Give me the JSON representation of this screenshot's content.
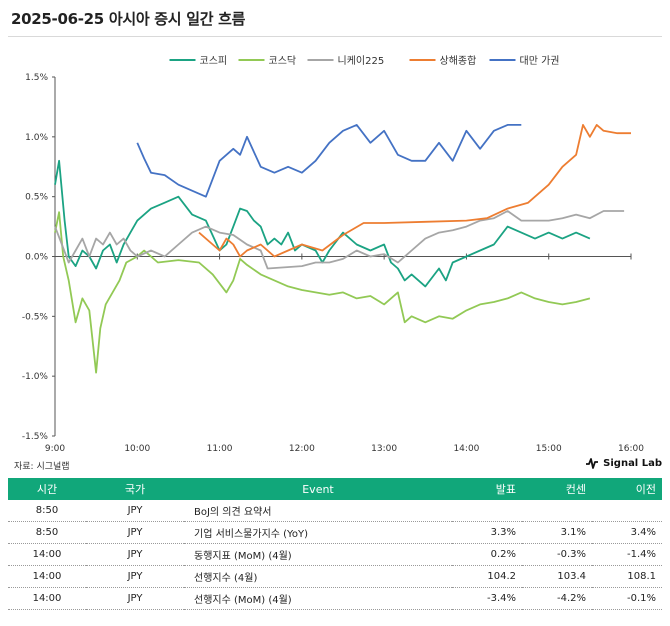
{
  "header": {
    "title": "2025-06-25 아시아 증시 일간 흐름"
  },
  "footer": {
    "source": "자료: 시그널랩",
    "brand": "Signal Lab"
  },
  "colors": {
    "kospi": "#1ba383",
    "kosdaq": "#92c955",
    "nikkei": "#a6a6a6",
    "shanghai": "#ed7d31",
    "taiwan": "#4472c4",
    "table_header": "#11a77a"
  },
  "chart_data": {
    "type": "line",
    "x_ticks": [
      "9:00",
      "10:00",
      "11:00",
      "12:00",
      "13:00",
      "14:00",
      "15:00",
      "16:00"
    ],
    "y_ticks": [
      "1.5%",
      "1.0%",
      "0.5%",
      "0.0%",
      "-0.5%",
      "-1.0%",
      "-1.5%"
    ],
    "ylim": [
      -1.5,
      1.5
    ],
    "xlim": [
      "9:00",
      "16:00"
    ],
    "legend_position": "top",
    "grid": false,
    "series": [
      {
        "name": "코스피",
        "color": "#1ba383",
        "points": [
          [
            "9:00",
            0.6
          ],
          [
            "9:03",
            0.8
          ],
          [
            "9:07",
            0.3
          ],
          [
            "9:10",
            0.0
          ],
          [
            "9:15",
            -0.08
          ],
          [
            "9:20",
            0.05
          ],
          [
            "9:25",
            0.0
          ],
          [
            "9:30",
            -0.1
          ],
          [
            "9:35",
            0.05
          ],
          [
            "9:40",
            0.1
          ],
          [
            "9:45",
            -0.05
          ],
          [
            "9:50",
            0.1
          ],
          [
            "9:55",
            0.2
          ],
          [
            "10:00",
            0.3
          ],
          [
            "10:10",
            0.4
          ],
          [
            "10:20",
            0.45
          ],
          [
            "10:30",
            0.5
          ],
          [
            "10:40",
            0.35
          ],
          [
            "10:50",
            0.3
          ],
          [
            "11:00",
            0.05
          ],
          [
            "11:05",
            0.1
          ],
          [
            "11:10",
            0.25
          ],
          [
            "11:15",
            0.4
          ],
          [
            "11:20",
            0.38
          ],
          [
            "11:25",
            0.3
          ],
          [
            "11:30",
            0.25
          ],
          [
            "11:35",
            0.1
          ],
          [
            "11:40",
            0.15
          ],
          [
            "11:45",
            0.1
          ],
          [
            "11:50",
            0.2
          ],
          [
            "11:55",
            0.05
          ],
          [
            "12:00",
            0.1
          ],
          [
            "12:10",
            0.05
          ],
          [
            "12:15",
            -0.05
          ],
          [
            "12:20",
            0.05
          ],
          [
            "12:30",
            0.2
          ],
          [
            "12:40",
            0.1
          ],
          [
            "12:50",
            0.05
          ],
          [
            "13:00",
            0.1
          ],
          [
            "13:05",
            -0.05
          ],
          [
            "13:10",
            -0.1
          ],
          [
            "13:15",
            -0.2
          ],
          [
            "13:20",
            -0.15
          ],
          [
            "13:30",
            -0.25
          ],
          [
            "13:40",
            -0.1
          ],
          [
            "13:45",
            -0.2
          ],
          [
            "13:50",
            -0.05
          ],
          [
            "14:00",
            0.0
          ],
          [
            "14:10",
            0.05
          ],
          [
            "14:20",
            0.1
          ],
          [
            "14:30",
            0.25
          ],
          [
            "14:40",
            0.2
          ],
          [
            "14:50",
            0.15
          ],
          [
            "15:00",
            0.2
          ],
          [
            "15:10",
            0.15
          ],
          [
            "15:20",
            0.2
          ],
          [
            "15:30",
            0.15
          ]
        ]
      },
      {
        "name": "코스닥",
        "color": "#92c955",
        "points": [
          [
            "9:00",
            0.2
          ],
          [
            "9:03",
            0.37
          ],
          [
            "9:06",
            0.0
          ],
          [
            "9:10",
            -0.2
          ],
          [
            "9:15",
            -0.55
          ],
          [
            "9:20",
            -0.35
          ],
          [
            "9:25",
            -0.45
          ],
          [
            "9:30",
            -0.97
          ],
          [
            "9:33",
            -0.6
          ],
          [
            "9:37",
            -0.4
          ],
          [
            "9:42",
            -0.3
          ],
          [
            "9:47",
            -0.2
          ],
          [
            "9:52",
            -0.05
          ],
          [
            "10:00",
            0.0
          ],
          [
            "10:05",
            0.05
          ],
          [
            "10:15",
            -0.05
          ],
          [
            "10:30",
            -0.03
          ],
          [
            "10:45",
            -0.05
          ],
          [
            "10:55",
            -0.15
          ],
          [
            "11:05",
            -0.3
          ],
          [
            "11:10",
            -0.2
          ],
          [
            "11:15",
            -0.02
          ],
          [
            "11:20",
            -0.07
          ],
          [
            "11:30",
            -0.15
          ],
          [
            "11:40",
            -0.2
          ],
          [
            "11:50",
            -0.25
          ],
          [
            "12:00",
            -0.28
          ],
          [
            "12:10",
            -0.3
          ],
          [
            "12:20",
            -0.32
          ],
          [
            "12:30",
            -0.3
          ],
          [
            "12:40",
            -0.35
          ],
          [
            "12:50",
            -0.33
          ],
          [
            "13:00",
            -0.4
          ],
          [
            "13:10",
            -0.3
          ],
          [
            "13:15",
            -0.55
          ],
          [
            "13:20",
            -0.5
          ],
          [
            "13:30",
            -0.55
          ],
          [
            "13:40",
            -0.5
          ],
          [
            "13:50",
            -0.52
          ],
          [
            "14:00",
            -0.45
          ],
          [
            "14:10",
            -0.4
          ],
          [
            "14:20",
            -0.38
          ],
          [
            "14:30",
            -0.35
          ],
          [
            "14:40",
            -0.3
          ],
          [
            "14:50",
            -0.35
          ],
          [
            "15:00",
            -0.38
          ],
          [
            "15:10",
            -0.4
          ],
          [
            "15:20",
            -0.38
          ],
          [
            "15:30",
            -0.35
          ]
        ]
      },
      {
        "name": "니케이225",
        "color": "#a6a6a6",
        "points": [
          [
            "9:00",
            0.25
          ],
          [
            "9:05",
            0.1
          ],
          [
            "9:10",
            -0.05
          ],
          [
            "9:15",
            0.05
          ],
          [
            "9:20",
            0.15
          ],
          [
            "9:25",
            0.0
          ],
          [
            "9:30",
            0.15
          ],
          [
            "9:35",
            0.1
          ],
          [
            "9:40",
            0.2
          ],
          [
            "9:45",
            0.1
          ],
          [
            "9:50",
            0.15
          ],
          [
            "9:55",
            0.05
          ],
          [
            "10:00",
            0.0
          ],
          [
            "10:10",
            0.05
          ],
          [
            "10:20",
            0.0
          ],
          [
            "10:30",
            0.1
          ],
          [
            "10:40",
            0.2
          ],
          [
            "10:50",
            0.25
          ],
          [
            "11:00",
            0.2
          ],
          [
            "11:10",
            0.18
          ],
          [
            "11:20",
            0.1
          ],
          [
            "11:30",
            0.05
          ],
          [
            "11:35",
            -0.1
          ],
          [
            "12:00",
            -0.08
          ],
          [
            "12:10",
            -0.05
          ],
          [
            "12:20",
            -0.05
          ],
          [
            "12:30",
            -0.02
          ],
          [
            "12:40",
            0.05
          ],
          [
            "12:50",
            0.0
          ],
          [
            "13:00",
            0.02
          ],
          [
            "13:10",
            -0.05
          ],
          [
            "13:20",
            0.05
          ],
          [
            "13:30",
            0.15
          ],
          [
            "13:40",
            0.2
          ],
          [
            "13:50",
            0.22
          ],
          [
            "14:00",
            0.25
          ],
          [
            "14:10",
            0.3
          ],
          [
            "14:20",
            0.32
          ],
          [
            "14:30",
            0.38
          ],
          [
            "14:40",
            0.3
          ],
          [
            "14:50",
            0.3
          ],
          [
            "15:00",
            0.3
          ],
          [
            "15:10",
            0.32
          ],
          [
            "15:20",
            0.35
          ],
          [
            "15:30",
            0.32
          ],
          [
            "15:40",
            0.38
          ],
          [
            "15:55",
            0.38
          ]
        ]
      },
      {
        "name": "상해종합",
        "color": "#ed7d31",
        "points": [
          [
            "10:45",
            0.2
          ],
          [
            "10:55",
            0.1
          ],
          [
            "11:00",
            0.05
          ],
          [
            "11:05",
            0.15
          ],
          [
            "11:10",
            0.1
          ],
          [
            "11:15",
            0.0
          ],
          [
            "11:20",
            0.05
          ],
          [
            "11:30",
            0.1
          ],
          [
            "11:40",
            0.0
          ],
          [
            "11:50",
            0.05
          ],
          [
            "12:00",
            0.1
          ],
          [
            "12:15",
            0.05
          ],
          [
            "12:30",
            0.18
          ],
          [
            "12:45",
            0.28
          ],
          [
            "13:00",
            0.28
          ],
          [
            "13:30",
            0.29
          ],
          [
            "14:00",
            0.3
          ],
          [
            "14:15",
            0.32
          ],
          [
            "14:30",
            0.4
          ],
          [
            "14:45",
            0.45
          ],
          [
            "15:00",
            0.6
          ],
          [
            "15:10",
            0.75
          ],
          [
            "15:20",
            0.85
          ],
          [
            "15:25",
            1.1
          ],
          [
            "15:30",
            1.0
          ],
          [
            "15:35",
            1.1
          ],
          [
            "15:40",
            1.05
          ],
          [
            "15:50",
            1.03
          ],
          [
            "16:00",
            1.03
          ]
        ]
      },
      {
        "name": "대만 가권",
        "color": "#4472c4",
        "points": [
          [
            "10:00",
            0.95
          ],
          [
            "10:05",
            0.82
          ],
          [
            "10:10",
            0.7
          ],
          [
            "10:20",
            0.68
          ],
          [
            "10:30",
            0.6
          ],
          [
            "10:40",
            0.55
          ],
          [
            "10:50",
            0.5
          ],
          [
            "11:00",
            0.8
          ],
          [
            "11:10",
            0.9
          ],
          [
            "11:15",
            0.85
          ],
          [
            "11:20",
            1.0
          ],
          [
            "11:30",
            0.75
          ],
          [
            "11:40",
            0.7
          ],
          [
            "11:50",
            0.75
          ],
          [
            "12:00",
            0.7
          ],
          [
            "12:10",
            0.8
          ],
          [
            "12:20",
            0.95
          ],
          [
            "12:30",
            1.05
          ],
          [
            "12:40",
            1.1
          ],
          [
            "12:50",
            0.95
          ],
          [
            "13:00",
            1.05
          ],
          [
            "13:10",
            0.85
          ],
          [
            "13:20",
            0.8
          ],
          [
            "13:30",
            0.8
          ],
          [
            "13:40",
            0.95
          ],
          [
            "13:50",
            0.8
          ],
          [
            "14:00",
            1.05
          ],
          [
            "14:10",
            0.9
          ],
          [
            "14:20",
            1.05
          ],
          [
            "14:30",
            1.1
          ],
          [
            "14:40",
            1.1
          ]
        ]
      }
    ]
  },
  "events": {
    "headers": [
      "시간",
      "국가",
      "Event",
      "발표",
      "컨센",
      "이전"
    ],
    "rows": [
      {
        "time": "8:50",
        "country": "JPY",
        "event": "BoJ의 의견 요약서",
        "actual": "",
        "consensus": "",
        "previous": ""
      },
      {
        "time": "8:50",
        "country": "JPY",
        "event": "기업 서비스물가지수 (YoY)",
        "actual": "3.3%",
        "consensus": "3.1%",
        "previous": "3.4%"
      },
      {
        "time": "14:00",
        "country": "JPY",
        "event": "동행지표 (MoM) (4월)",
        "actual": "0.2%",
        "consensus": "-0.3%",
        "previous": "-1.4%"
      },
      {
        "time": "14:00",
        "country": "JPY",
        "event": "선행지수 (4월)",
        "actual": "104.2",
        "consensus": "103.4",
        "previous": "108.1"
      },
      {
        "time": "14:00",
        "country": "JPY",
        "event": "선행지수 (MoM) (4월)",
        "actual": "-3.4%",
        "consensus": "-4.2%",
        "previous": "-0.1%"
      }
    ]
  }
}
